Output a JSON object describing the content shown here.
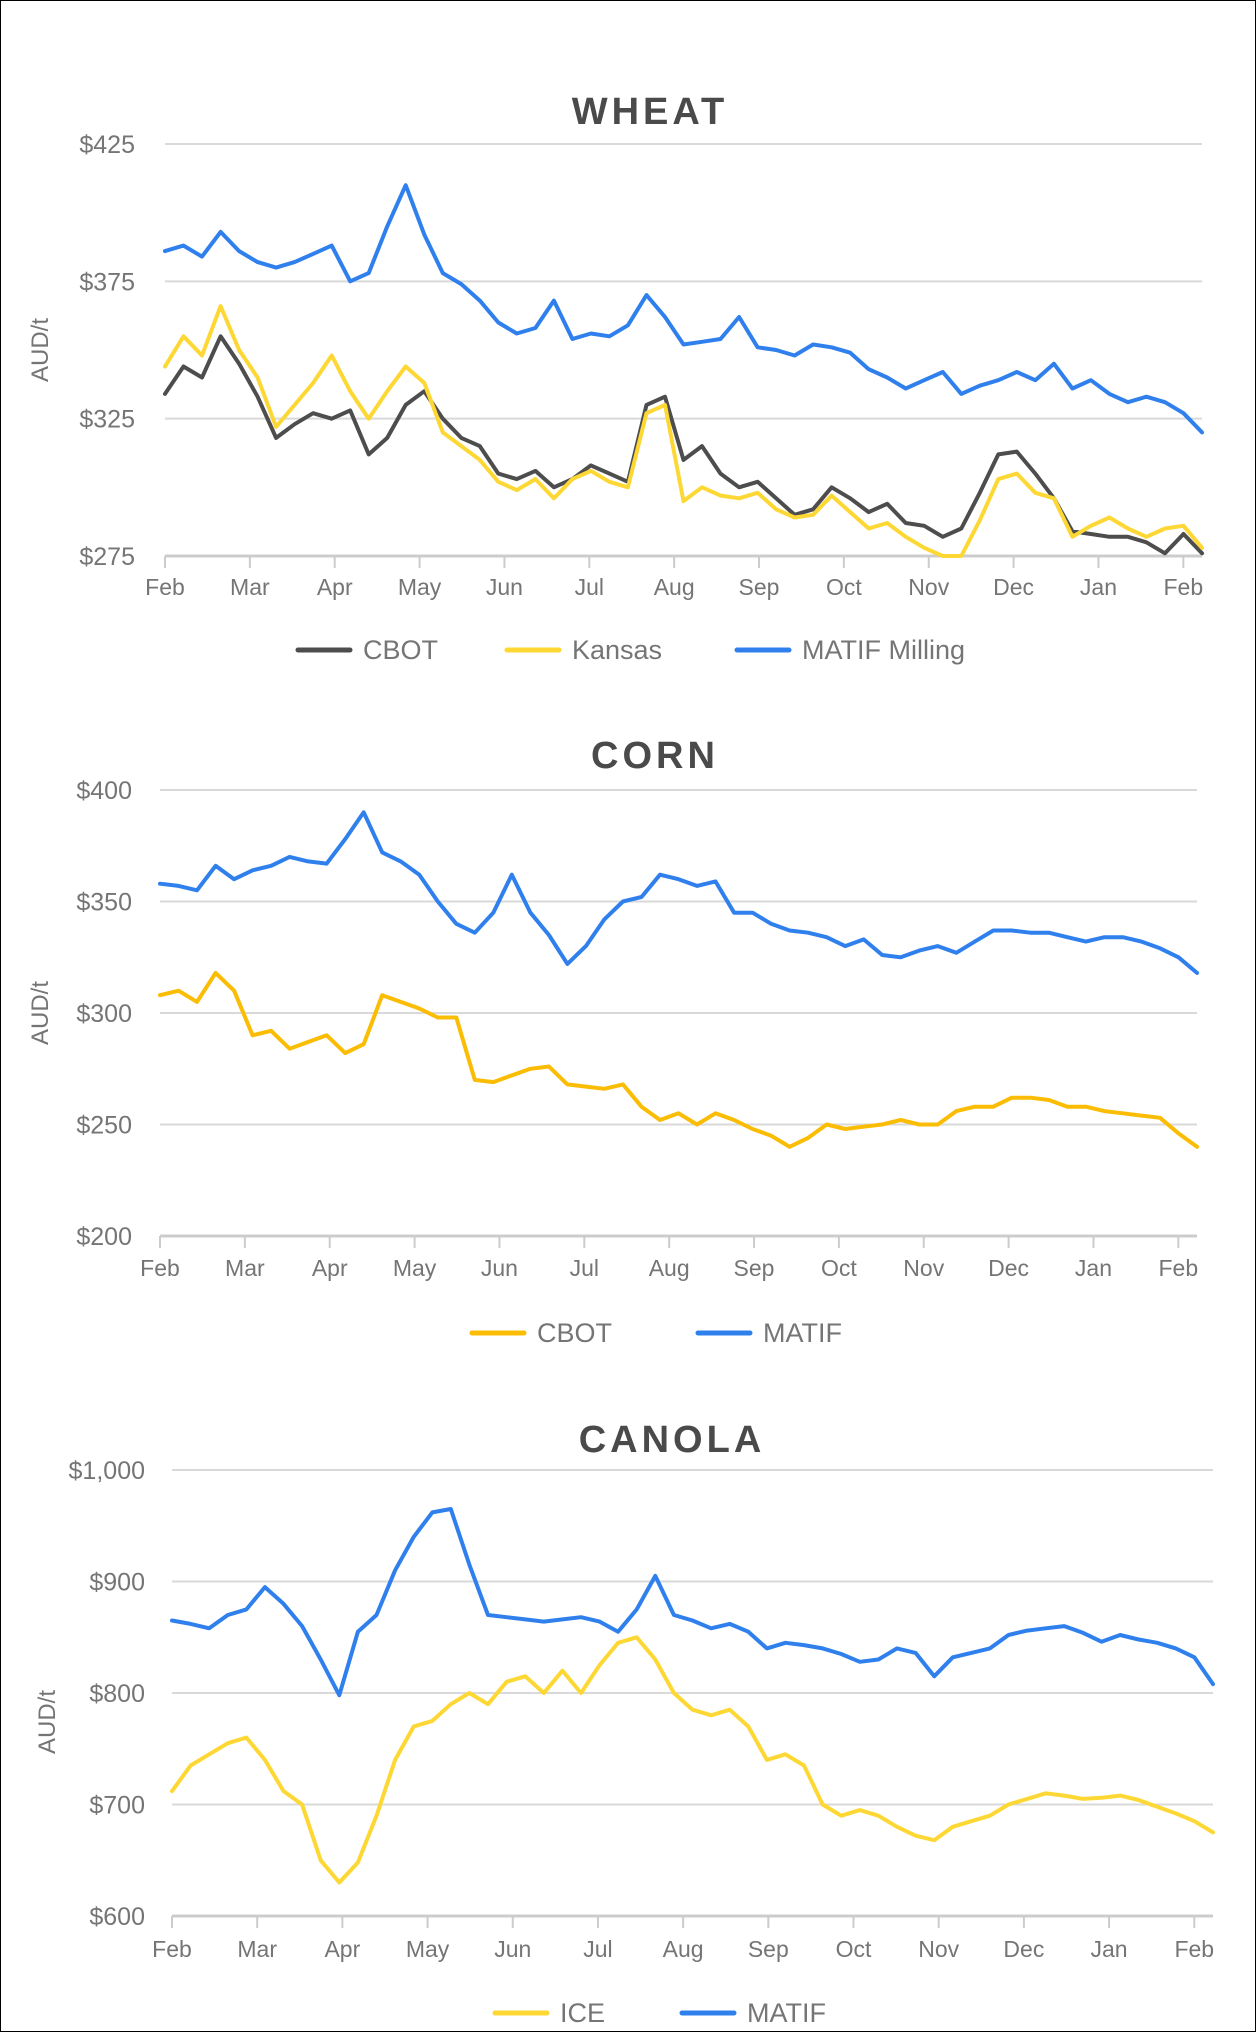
{
  "chart_data": [
    {
      "type": "line",
      "title": "WHEAT",
      "xlabel": "",
      "ylabel": "AUD/t",
      "ylim": [
        275,
        425
      ],
      "yticks": [
        "$275",
        "$325",
        "$375",
        "$425"
      ],
      "ytick_values": [
        275,
        325,
        375,
        425
      ],
      "x_ticks": [
        "Feb",
        "Mar",
        "Apr",
        "May",
        "Jun",
        "Jul",
        "Aug",
        "Sep",
        "Oct",
        "Nov",
        "Dec",
        "Jan",
        "Feb"
      ],
      "grid": true,
      "legend_position": "bottom",
      "series": [
        {
          "name": "CBOT",
          "color": "#4d4d4d",
          "values": [
            334,
            344,
            340,
            355,
            345,
            333,
            318,
            323,
            327,
            325,
            328,
            312,
            318,
            330,
            335,
            325,
            318,
            315,
            305,
            303,
            306,
            300,
            303,
            308,
            305,
            302,
            330,
            333,
            310,
            315,
            305,
            300,
            302,
            296,
            290,
            292,
            300,
            296,
            291,
            294,
            287,
            286,
            282,
            285,
            298,
            312,
            313,
            305,
            296,
            284,
            283,
            282,
            282,
            280,
            276,
            283,
            276
          ]
        },
        {
          "name": "Kansas",
          "color": "#fdd835",
          "values": [
            344,
            355,
            348,
            366,
            350,
            340,
            322,
            330,
            338,
            348,
            335,
            325,
            335,
            344,
            338,
            320,
            315,
            310,
            302,
            299,
            303,
            296,
            303,
            306,
            302,
            300,
            327,
            330,
            295,
            300,
            297,
            296,
            298,
            292,
            289,
            290,
            297,
            291,
            285,
            287,
            282,
            278,
            275,
            274,
            288,
            303,
            305,
            298,
            296,
            282,
            286,
            289,
            285,
            282,
            285,
            286,
            278
          ]
        },
        {
          "name": "MATIF Milling",
          "color": "#2f80ed",
          "values": [
            386,
            388,
            384,
            393,
            386,
            382,
            380,
            382,
            385,
            388,
            375,
            378,
            395,
            410,
            392,
            378,
            374,
            368,
            360,
            356,
            358,
            368,
            354,
            356,
            355,
            359,
            370,
            362,
            352,
            353,
            354,
            362,
            351,
            350,
            348,
            352,
            351,
            349,
            343,
            340,
            336,
            339,
            342,
            334,
            337,
            339,
            342,
            339,
            345,
            336,
            339,
            334,
            331,
            333,
            331,
            327,
            320
          ]
        }
      ]
    },
    {
      "type": "line",
      "title": "CORN",
      "xlabel": "",
      "ylabel": "AUD/t",
      "ylim": [
        200,
        400
      ],
      "yticks": [
        "$200",
        "$250",
        "$300",
        "$350",
        "$400"
      ],
      "ytick_values": [
        200,
        250,
        300,
        350,
        400
      ],
      "x_ticks": [
        "Feb",
        "Mar",
        "Apr",
        "May",
        "Jun",
        "Jul",
        "Aug",
        "Sep",
        "Oct",
        "Nov",
        "Dec",
        "Jan",
        "Feb"
      ],
      "grid": true,
      "legend_position": "bottom",
      "series": [
        {
          "name": "CBOT",
          "color": "#fbbc04",
          "values": [
            308,
            310,
            305,
            318,
            310,
            290,
            292,
            284,
            287,
            290,
            282,
            286,
            308,
            305,
            302,
            298,
            298,
            270,
            269,
            272,
            275,
            276,
            268,
            267,
            266,
            268,
            258,
            252,
            255,
            250,
            255,
            252,
            248,
            245,
            240,
            244,
            250,
            248,
            249,
            250,
            252,
            250,
            250,
            256,
            258,
            258,
            262,
            262,
            261,
            258,
            258,
            256,
            255,
            254,
            253,
            246,
            240
          ]
        },
        {
          "name": "MATIF",
          "color": "#2f80ed",
          "values": [
            358,
            357,
            355,
            366,
            360,
            364,
            366,
            370,
            368,
            367,
            378,
            390,
            372,
            368,
            362,
            350,
            340,
            336,
            345,
            362,
            345,
            335,
            322,
            330,
            342,
            350,
            352,
            362,
            360,
            357,
            359,
            345,
            345,
            340,
            337,
            336,
            334,
            330,
            333,
            326,
            325,
            328,
            330,
            327,
            332,
            337,
            337,
            336,
            336,
            334,
            332,
            334,
            334,
            332,
            329,
            325,
            318
          ]
        }
      ]
    },
    {
      "type": "line",
      "title": "CANOLA",
      "xlabel": "",
      "ylabel": "AUD/t",
      "ylim": [
        600,
        1000
      ],
      "yticks": [
        "$600",
        "$700",
        "$800",
        "$900",
        "$1,000"
      ],
      "ytick_values": [
        600,
        700,
        800,
        900,
        1000
      ],
      "x_ticks": [
        "Feb",
        "Mar",
        "Apr",
        "May",
        "Jun",
        "Jul",
        "Aug",
        "Sep",
        "Oct",
        "Nov",
        "Dec",
        "Jan",
        "Feb"
      ],
      "grid": true,
      "legend_position": "bottom",
      "series": [
        {
          "name": "ICE",
          "color": "#fdd835",
          "values": [
            712,
            735,
            745,
            755,
            760,
            740,
            712,
            700,
            650,
            630,
            648,
            690,
            740,
            770,
            775,
            790,
            800,
            790,
            810,
            815,
            800,
            820,
            800,
            825,
            845,
            850,
            830,
            800,
            785,
            780,
            785,
            770,
            740,
            745,
            735,
            700,
            690,
            695,
            690,
            680,
            672,
            668,
            680,
            685,
            690,
            700,
            705,
            710,
            708,
            705,
            706,
            708,
            704,
            698,
            692,
            685,
            675
          ]
        },
        {
          "name": "MATIF",
          "color": "#2f80ed",
          "values": [
            865,
            862,
            858,
            870,
            875,
            895,
            880,
            860,
            830,
            798,
            855,
            870,
            910,
            940,
            962,
            965,
            915,
            870,
            868,
            866,
            864,
            866,
            868,
            864,
            855,
            875,
            905,
            870,
            865,
            858,
            862,
            855,
            840,
            845,
            843,
            840,
            835,
            828,
            830,
            840,
            836,
            815,
            832,
            836,
            840,
            852,
            856,
            858,
            860,
            854,
            846,
            852,
            848,
            845,
            840,
            832,
            808
          ]
        }
      ]
    }
  ],
  "charts": [
    {
      "title": "WHEAT",
      "ylabel": "AUD/t",
      "legend": [
        "CBOT",
        "Kansas",
        "MATIF Milling"
      ]
    },
    {
      "title": "CORN",
      "ylabel": "AUD/t",
      "legend": [
        "CBOT",
        "MATIF"
      ]
    },
    {
      "title": "CANOLA",
      "ylabel": "AUD/t",
      "legend": [
        "ICE",
        "MATIF"
      ]
    }
  ]
}
